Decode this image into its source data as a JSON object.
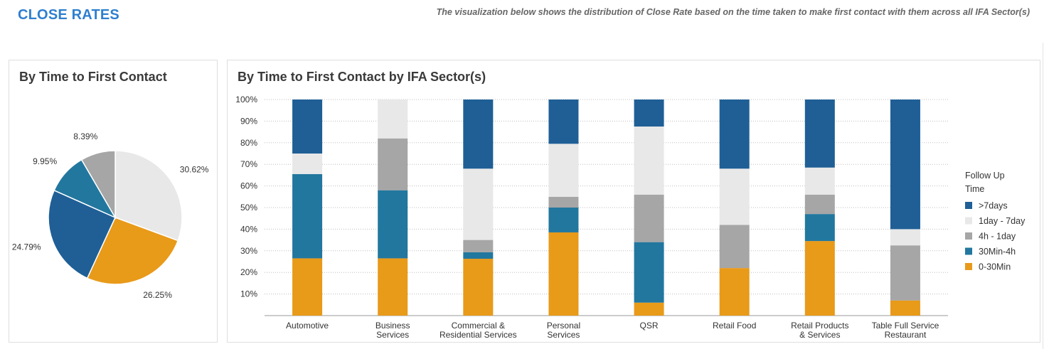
{
  "header": {
    "title": "CLOSE RATES",
    "subtitle": "The visualization below shows the distribution of Close Rate based on the time taken to make first contact with them across all IFA Sector(s)"
  },
  "colors": {
    ">7days": "#1f5f96",
    "1day - 7day": "#e8e8e8",
    "4h - 1day": "#a6a6a6",
    "30Min-4h": "#22779e",
    "0-30Min": "#e89a19"
  },
  "chart_data": [
    {
      "type": "pie",
      "title": "By Time to First Contact",
      "slices": [
        {
          "label": "1day - 7day",
          "value": 30.62,
          "display": "30.62%"
        },
        {
          "label": "0-30Min",
          "value": 26.25,
          "display": "26.25%"
        },
        {
          "label": ">7days",
          "value": 24.79,
          "display": "24.79%"
        },
        {
          "label": "30Min-4h",
          "value": 9.95,
          "display": "9.95%"
        },
        {
          "label": "4h - 1day",
          "value": 8.39,
          "display": "8.39%"
        }
      ]
    },
    {
      "type": "bar",
      "stacked": true,
      "title": "By Time to First Contact by IFA Sector(s)",
      "categories": [
        [
          "Automotive"
        ],
        [
          "Business",
          "Services"
        ],
        [
          "Commercial &",
          "Residential Services"
        ],
        [
          "Personal",
          "Services"
        ],
        [
          "QSR"
        ],
        [
          "Retail Food"
        ],
        [
          "Retail Products",
          "& Services"
        ],
        [
          "Table  Full Service",
          "Restaurant"
        ]
      ],
      "yticks": [
        "10%",
        "20%",
        "30%",
        "40%",
        "50%",
        "60%",
        "70%",
        "80%",
        "90%",
        "100%"
      ],
      "ylim": [
        0,
        100
      ],
      "legend": {
        "title_lines": [
          "Follow Up",
          "Time"
        ],
        "items": [
          ">7days",
          "1day - 7day",
          "4h - 1day",
          "30Min-4h",
          "0-30Min"
        ]
      },
      "series": [
        {
          "name": "0-30Min",
          "values": [
            26.5,
            26.5,
            26.3,
            38.5,
            6.0,
            22.0,
            34.5,
            7.0
          ]
        },
        {
          "name": "30Min-4h",
          "values": [
            39.0,
            31.5,
            3.0,
            11.5,
            28.0,
            0.0,
            12.5,
            0.0
          ]
        },
        {
          "name": "4h - 1day",
          "values": [
            0.0,
            24.0,
            5.7,
            5.0,
            22.0,
            20.0,
            9.0,
            25.5
          ]
        },
        {
          "name": "1day - 7day",
          "values": [
            9.5,
            18.0,
            33.0,
            24.5,
            31.5,
            26.0,
            12.5,
            7.5
          ]
        },
        {
          "name": ">7days",
          "values": [
            25.0,
            0.0,
            32.0,
            20.5,
            12.5,
            32.0,
            31.5,
            60.0
          ]
        }
      ]
    }
  ]
}
